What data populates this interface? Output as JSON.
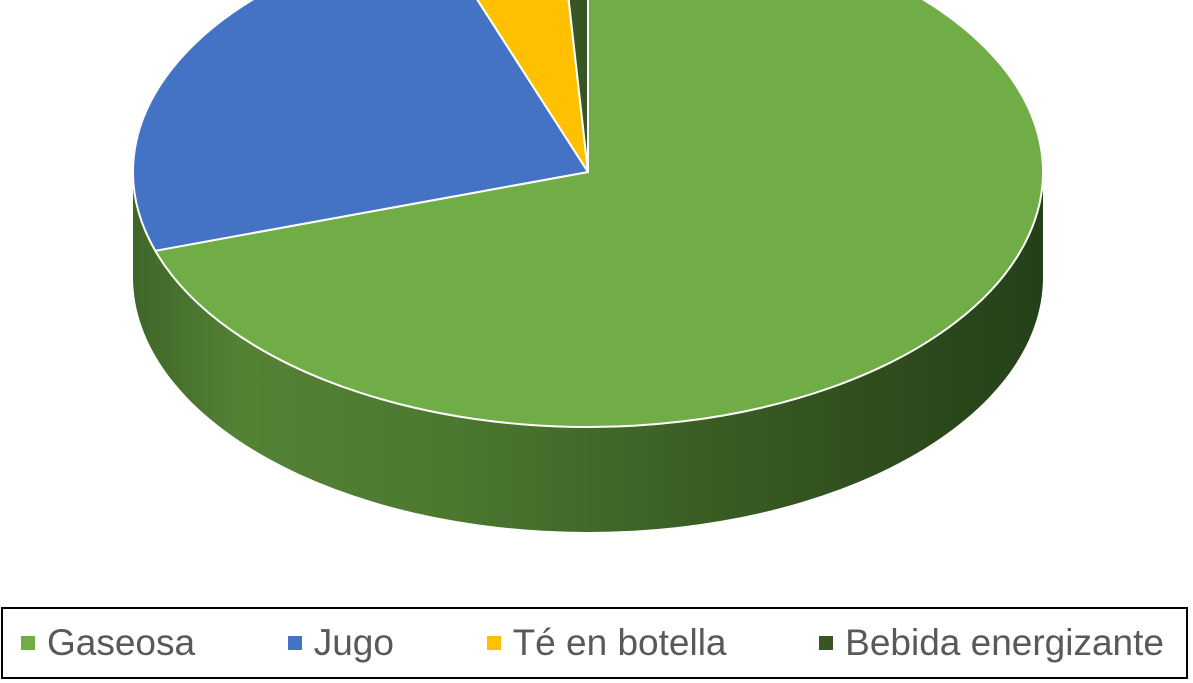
{
  "chart_data": {
    "type": "pie",
    "style": "3d",
    "categories": [
      "Gaseosa",
      "Jugo",
      "Té en botella",
      "Bebida energizante"
    ],
    "values": [
      70,
      24.5,
      4.5,
      1
    ],
    "colors": [
      "#70ad47",
      "#4472c4",
      "#ffc000",
      "#375623"
    ],
    "legend_position": "bottom",
    "title": ""
  },
  "legend": {
    "items": [
      {
        "label": "Gaseosa",
        "color": "#70ad47"
      },
      {
        "label": "Jugo",
        "color": "#4472c4"
      },
      {
        "label": "Té en botella",
        "color": "#ffc000"
      },
      {
        "label": "Bebida energizante",
        "color": "#375623"
      }
    ]
  }
}
